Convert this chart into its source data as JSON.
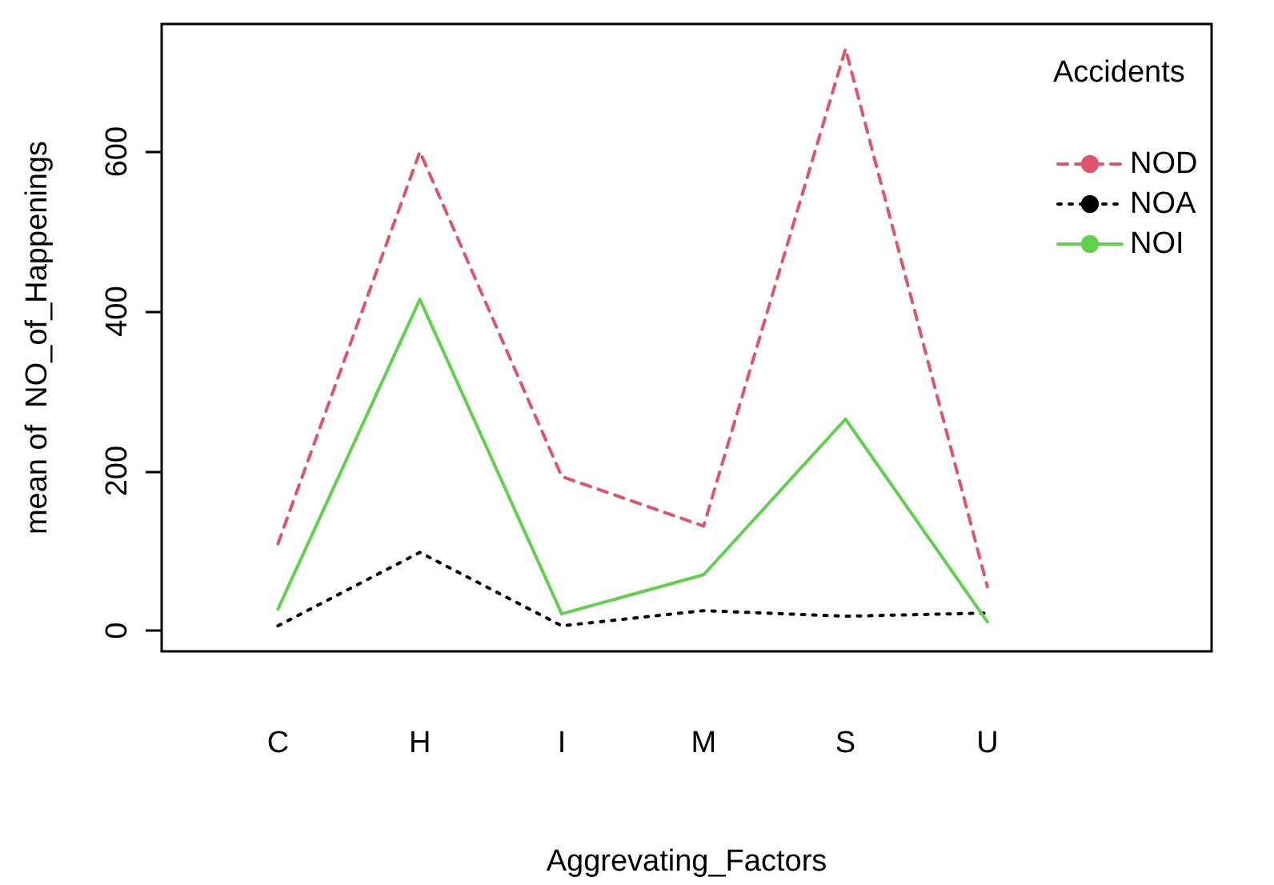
{
  "chart_data": {
    "type": "line",
    "xlabel": "Aggrevating_Factors",
    "ylabel": "mean of  NO_of_Happenings",
    "legend_title": "Accidents",
    "legend": "top right",
    "grid": false,
    "categories": [
      "C",
      "H",
      "I",
      "M",
      "S",
      "U"
    ],
    "ylim": [
      -26,
      760
    ],
    "yticks": [
      0,
      200,
      400,
      600
    ],
    "series": [
      {
        "name": "NOD",
        "color": "#df536b",
        "line_style": "dashed",
        "values": [
          109,
          600,
          193,
          131,
          729,
          55
        ]
      },
      {
        "name": "NOA",
        "color": "#000000",
        "line_style": "dotted",
        "values": [
          6,
          98,
          6,
          25,
          18,
          22
        ]
      },
      {
        "name": "NOI",
        "color": "#61d04f",
        "line_style": "solid",
        "values": [
          27,
          415,
          21,
          70,
          265,
          11
        ]
      }
    ]
  }
}
